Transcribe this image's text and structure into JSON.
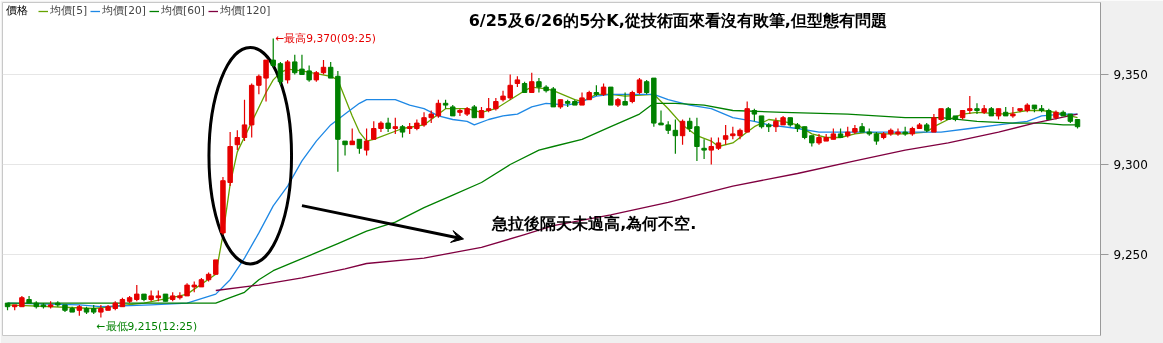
{
  "chart_data": {
    "type": "candlestick",
    "title": "6/25及6/26的5分K,從技術面來看沒有敗筆,但型態有問題",
    "legend_title": "價格",
    "legend": "top left",
    "grid": "y",
    "tick_labels": "y",
    "ylim": [
      9205,
      9390
    ],
    "yticks": [
      {
        "value": 9250,
        "label": "9,250"
      },
      {
        "value": 9300,
        "label": "9,300"
      },
      {
        "value": 9350,
        "label": "9,350"
      }
    ],
    "annotations": [
      "←最高9,370(09:25)",
      "←最低9,215(12:25)",
      "急拉後隔天未過高,為何不空."
    ],
    "categories": [
      null,
      null,
      null,
      null,
      null,
      null,
      null,
      null,
      null,
      null,
      null,
      null,
      null,
      null,
      null,
      null,
      null,
      null,
      null,
      null,
      null,
      null,
      null,
      null,
      null,
      null,
      null,
      null,
      null,
      null,
      null,
      null,
      null,
      null,
      null,
      null,
      null,
      null,
      null,
      null,
      null,
      null,
      null,
      null,
      null,
      null,
      null,
      null,
      null,
      null,
      null,
      null,
      null,
      null,
      null,
      null,
      null,
      null,
      null,
      null,
      null,
      null,
      null,
      null,
      null,
      null,
      null,
      null,
      null,
      null,
      null,
      null,
      null,
      null,
      null,
      null,
      null,
      null,
      null,
      null,
      null,
      null,
      null,
      null,
      null,
      null,
      null,
      null,
      null,
      null,
      null,
      null,
      null,
      null,
      null,
      null,
      null,
      null,
      null,
      null,
      null,
      null,
      null,
      null,
      null,
      null,
      null,
      null,
      null,
      null,
      null,
      null,
      null,
      null,
      null,
      null,
      null,
      null,
      null,
      null,
      null,
      null,
      null,
      null,
      null,
      null,
      null,
      null,
      null,
      null,
      null,
      null,
      null,
      null,
      null,
      null,
      null,
      null,
      null,
      null,
      null,
      null,
      null,
      null,
      null,
      null,
      null,
      null,
      null,
      null
    ],
    "ohlc": [
      [
        9223,
        9223,
        9219,
        9221
      ],
      [
        9221,
        9222,
        9219,
        9222
      ],
      [
        9221,
        9227,
        9221,
        9226
      ],
      [
        9225,
        9227,
        9223,
        9223
      ],
      [
        9223,
        9224,
        9220,
        9221
      ],
      [
        9222,
        9223,
        9220,
        9221
      ],
      [
        9221,
        9224,
        9220,
        9222
      ],
      [
        9223,
        9224,
        9221,
        9222
      ],
      [
        9222,
        9222,
        9218,
        9219
      ],
      [
        9220,
        9221,
        9218,
        9218
      ],
      [
        9219,
        9222,
        9216,
        9221
      ],
      [
        9220,
        9221,
        9217,
        9218
      ],
      [
        9220,
        9222,
        9217,
        9218
      ],
      [
        9218,
        9222,
        9215,
        9220
      ],
      [
        9219,
        9222,
        9219,
        9221
      ],
      [
        9220,
        9224,
        9219,
        9223
      ],
      [
        9221,
        9226,
        9221,
        9225
      ],
      [
        9224,
        9227,
        9223,
        9226
      ],
      [
        9225,
        9233,
        9224,
        9228
      ],
      [
        9228,
        9228,
        9224,
        9225
      ],
      [
        9225,
        9230,
        9224,
        9227
      ],
      [
        9226,
        9230,
        9224,
        9227
      ],
      [
        9228,
        9228,
        9224,
        9224
      ],
      [
        9225,
        9229,
        9224,
        9227
      ],
      [
        9226,
        9229,
        9225,
        9227
      ],
      [
        9227,
        9234,
        9227,
        9233
      ],
      [
        9232,
        9235,
        9229,
        9233
      ],
      [
        9232,
        9237,
        9232,
        9236
      ],
      [
        9236,
        9240,
        9235,
        9239
      ],
      [
        9239,
        9247,
        9239,
        9247
      ],
      [
        9262,
        9293,
        9261,
        9291
      ],
      [
        9290,
        9318,
        9288,
        9310
      ],
      [
        9311,
        9319,
        9308,
        9315
      ],
      [
        9315,
        9336,
        9313,
        9322
      ],
      [
        9322,
        9345,
        9315,
        9344
      ],
      [
        9344,
        9350,
        9339,
        9349
      ],
      [
        9348,
        9358,
        9335,
        9358
      ],
      [
        9358,
        9370,
        9354,
        9355
      ],
      [
        9356,
        9357,
        9344,
        9346
      ],
      [
        9347,
        9358,
        9345,
        9357
      ],
      [
        9357,
        9361,
        9350,
        9351
      ],
      [
        9353,
        9361,
        9350,
        9350
      ],
      [
        9352,
        9355,
        9346,
        9347
      ],
      [
        9347,
        9352,
        9346,
        9351
      ],
      [
        9351,
        9358,
        9350,
        9354
      ],
      [
        9354,
        9357,
        9348,
        9348
      ],
      [
        9349,
        9352,
        9296,
        9314
      ],
      [
        9313,
        9313,
        9305,
        9311
      ],
      [
        9311,
        9320,
        9311,
        9313
      ],
      [
        9314,
        9314,
        9306,
        9309
      ],
      [
        9308,
        9320,
        9305,
        9313
      ],
      [
        9314,
        9324,
        9314,
        9320
      ],
      [
        9320,
        9324,
        9318,
        9323
      ],
      [
        9323,
        9326,
        9318,
        9320
      ],
      [
        9320,
        9326,
        9317,
        9321
      ],
      [
        9321,
        9322,
        9315,
        9318
      ],
      [
        9320,
        9323,
        9317,
        9321
      ],
      [
        9320,
        9325,
        9319,
        9323
      ],
      [
        9322,
        9329,
        9321,
        9326
      ],
      [
        9326,
        9330,
        9323,
        9328
      ],
      [
        9327,
        9336,
        9326,
        9334
      ],
      [
        9334,
        9336,
        9331,
        9333
      ],
      [
        9332,
        9333,
        9327,
        9327
      ],
      [
        9329,
        9331,
        9327,
        9330
      ],
      [
        9328,
        9332,
        9327,
        9331
      ],
      [
        9332,
        9333,
        9326,
        9326
      ],
      [
        9326,
        9332,
        9326,
        9330
      ],
      [
        9330,
        9337,
        9329,
        9331
      ],
      [
        9331,
        9337,
        9330,
        9335
      ],
      [
        9336,
        9341,
        9335,
        9338
      ],
      [
        9337,
        9350,
        9336,
        9344
      ],
      [
        9345,
        9349,
        9343,
        9347
      ],
      [
        9345,
        9346,
        9340,
        9340
      ],
      [
        9340,
        9351,
        9340,
        9346
      ],
      [
        9346,
        9348,
        9340,
        9343
      ],
      [
        9343,
        9344,
        9340,
        9341
      ],
      [
        9342,
        9343,
        9332,
        9332
      ],
      [
        9332,
        9336,
        9331,
        9336
      ],
      [
        9335,
        9336,
        9332,
        9334
      ],
      [
        9335,
        9336,
        9333,
        9333
      ],
      [
        9333,
        9340,
        9333,
        9337
      ],
      [
        9336,
        9341,
        9336,
        9340
      ],
      [
        9340,
        9344,
        9338,
        9339
      ],
      [
        9339,
        9345,
        9338,
        9343
      ],
      [
        9343,
        9343,
        9333,
        9333
      ],
      [
        9333,
        9337,
        9332,
        9336
      ],
      [
        9335,
        9340,
        9333,
        9333
      ],
      [
        9335,
        9341,
        9334,
        9340
      ],
      [
        9340,
        9348,
        9339,
        9347
      ],
      [
        9346,
        9347,
        9339,
        9340
      ],
      [
        9348,
        9348,
        9321,
        9323
      ],
      [
        9323,
        9330,
        9322,
        9322
      ],
      [
        9322,
        9324,
        9317,
        9319
      ],
      [
        9319,
        9325,
        9306,
        9316
      ],
      [
        9316,
        9325,
        9311,
        9324
      ],
      [
        9324,
        9326,
        9318,
        9320
      ],
      [
        9321,
        9326,
        9302,
        9310
      ],
      [
        9309,
        9314,
        9303,
        9308
      ],
      [
        9308,
        9315,
        9300,
        9310
      ],
      [
        9309,
        9315,
        9308,
        9312
      ],
      [
        9314,
        9322,
        9311,
        9316
      ],
      [
        9316,
        9321,
        9314,
        9317
      ],
      [
        9316,
        9320,
        9314,
        9319
      ],
      [
        9318,
        9335,
        9318,
        9331
      ],
      [
        9330,
        9331,
        9324,
        9328
      ],
      [
        9327,
        9327,
        9320,
        9321
      ],
      [
        9322,
        9323,
        9318,
        9321
      ],
      [
        9321,
        9326,
        9318,
        9324
      ],
      [
        9322,
        9327,
        9322,
        9326
      ],
      [
        9326,
        9326,
        9321,
        9322
      ],
      [
        9322,
        9323,
        9318,
        9320
      ],
      [
        9321,
        9321,
        9314,
        9315
      ],
      [
        9316,
        9316,
        9310,
        9312
      ],
      [
        9312,
        9317,
        9311,
        9315
      ],
      [
        9313,
        9317,
        9313,
        9315
      ],
      [
        9314,
        9320,
        9314,
        9317
      ],
      [
        9317,
        9320,
        9315,
        9315
      ],
      [
        9316,
        9321,
        9315,
        9318
      ],
      [
        9318,
        9322,
        9317,
        9320
      ],
      [
        9321,
        9323,
        9318,
        9318
      ],
      [
        9318,
        9320,
        9316,
        9317
      ],
      [
        9317,
        9318,
        9311,
        9313
      ],
      [
        9315,
        9318,
        9314,
        9317
      ],
      [
        9317,
        9320,
        9316,
        9319
      ],
      [
        9317,
        9320,
        9316,
        9318
      ],
      [
        9318,
        9321,
        9316,
        9317
      ],
      [
        9317,
        9321,
        9316,
        9320
      ],
      [
        9320,
        9323,
        9320,
        9322
      ],
      [
        9322,
        9323,
        9318,
        9319
      ],
      [
        9318,
        9328,
        9318,
        9326
      ],
      [
        9325,
        9331,
        9324,
        9331
      ],
      [
        9331,
        9332,
        9325,
        9325
      ],
      [
        9327,
        9327,
        9324,
        9325
      ],
      [
        9326,
        9330,
        9325,
        9330
      ],
      [
        9330,
        9338,
        9328,
        9331
      ],
      [
        9331,
        9334,
        9328,
        9330
      ],
      [
        9329,
        9333,
        9328,
        9331
      ],
      [
        9331,
        9332,
        9327,
        9327
      ],
      [
        9327,
        9331,
        9325,
        9331
      ],
      [
        9329,
        9332,
        9327,
        9327
      ],
      [
        9327,
        9332,
        9326,
        9328
      ],
      [
        9330,
        9331,
        9329,
        9331
      ],
      [
        9330,
        9334,
        9329,
        9333
      ],
      [
        9333,
        9333,
        9329,
        9331
      ],
      [
        9331,
        9333,
        9329,
        9330
      ],
      [
        9330,
        9331,
        9325,
        9325
      ],
      [
        9326,
        9330,
        9325,
        9329
      ],
      [
        9329,
        9330,
        9327,
        9327
      ],
      [
        9328,
        9328,
        9323,
        9324
      ],
      [
        9325,
        9325,
        9320,
        9321
      ]
    ],
    "colors": [
      "#008000",
      "#e60000",
      "#e60000",
      "#008000",
      "#008000",
      "#008000",
      "#e60000",
      "#008000",
      "#008000",
      "#008000",
      "#e60000",
      "#008000",
      "#008000",
      "#e60000",
      "#e60000",
      "#e60000",
      "#e60000",
      "#e60000",
      "#e60000",
      "#008000",
      "#e60000",
      "#e60000",
      "#008000",
      "#e60000",
      "#e60000",
      "#e60000",
      "#e60000",
      "#e60000",
      "#e60000",
      "#e60000",
      "#e60000",
      "#e60000",
      "#e60000",
      "#e60000",
      "#e60000",
      "#e60000",
      "#e60000",
      "#008000",
      "#008000",
      "#e60000",
      "#008000",
      "#008000",
      "#008000",
      "#e60000",
      "#e60000",
      "#008000",
      "#008000",
      "#008000",
      "#e60000",
      "#008000",
      "#e60000",
      "#e60000",
      "#e60000",
      "#008000",
      "#e60000",
      "#008000",
      "#e60000",
      "#e60000",
      "#e60000",
      "#e60000",
      "#e60000",
      "#008000",
      "#008000",
      "#e60000",
      "#e60000",
      "#008000",
      "#e60000",
      "#e60000",
      "#e60000",
      "#e60000",
      "#e60000",
      "#e60000",
      "#008000",
      "#e60000",
      "#008000",
      "#008000",
      "#008000",
      "#e60000",
      "#008000",
      "#008000",
      "#e60000",
      "#e60000",
      "#008000",
      "#e60000",
      "#008000",
      "#e60000",
      "#008000",
      "#e60000",
      "#e60000",
      "#008000",
      "#008000",
      "#008000",
      "#008000",
      "#008000",
      "#e60000",
      "#008000",
      "#008000",
      "#008000",
      "#e60000",
      "#e60000",
      "#e60000",
      "#e60000",
      "#e60000",
      "#e60000",
      "#008000",
      "#008000",
      "#008000",
      "#e60000",
      "#e60000",
      "#008000",
      "#008000",
      "#008000",
      "#008000",
      "#e60000",
      "#e60000",
      "#e60000",
      "#008000",
      "#e60000",
      "#e60000",
      "#008000",
      "#008000",
      "#008000",
      "#e60000",
      "#e60000",
      "#e60000",
      "#008000",
      "#e60000",
      "#e60000",
      "#008000",
      "#e60000",
      "#e60000",
      "#008000",
      "#008000",
      "#e60000",
      "#e60000",
      "#008000",
      "#e60000",
      "#008000",
      "#e60000",
      "#008000",
      "#e60000",
      "#e60000",
      "#e60000",
      "#008000",
      "#008000",
      "#008000",
      "#e60000",
      "#008000",
      "#008000",
      "#008000"
    ],
    "series": [
      {
        "type": "line",
        "name": "均價[5]",
        "color": "#66a300",
        "values": [
          9222,
          null,
          null,
          null,
          null,
          null,
          null,
          null,
          null,
          null,
          null,
          null,
          9220,
          null,
          null,
          null,
          null,
          null,
          null,
          9223,
          null,
          null,
          null,
          null,
          9227,
          9228,
          null,
          null,
          null,
          9239,
          9261,
          9289,
          9307,
          null,
          null,
          null,
          9340,
          9347,
          9351,
          9353,
          null,
          9352,
          null,
          null,
          null,
          9349,
          9347,
          null,
          9327,
          9318,
          9313,
          9314,
          null,
          null,
          null,
          9320,
          null,
          null,
          9322,
          9325,
          null,
          9331,
          null,
          null,
          9331,
          null,
          9329,
          null,
          9331,
          null,
          9336,
          null,
          9341,
          9343,
          null,
          9342,
          9341,
          null,
          null,
          9336,
          9335,
          null,
          9339,
          null,
          9339,
          null,
          9338,
          null,
          null,
          null,
          9339,
          null,
          9331,
          null,
          9322,
          null,
          9316,
          null,
          9313,
          9310,
          null,
          9312,
          null,
          9318,
          9321,
          null,
          9325,
          null,
          9324,
          null,
          9322,
          null,
          9317,
          null,
          9315,
          null,
          9315,
          null,
          9317,
          null,
          9318,
          null,
          9317,
          null,
          9317,
          9317,
          null,
          null,
          9318,
          9321,
          null,
          9325,
          null,
          9328,
          null,
          9329,
          null,
          null,
          null,
          9328,
          null,
          null,
          9330,
          null,
          9330,
          null,
          9329,
          null,
          9327,
          9326
        ]
      },
      {
        "type": "line",
        "name": "均價[20]",
        "color": "#1e88e5",
        "values": [
          9223,
          null,
          null,
          null,
          null,
          null,
          null,
          null,
          null,
          null,
          9222,
          null,
          null,
          9221,
          null,
          null,
          null,
          null,
          null,
          null,
          9222,
          null,
          null,
          null,
          null,
          9223,
          null,
          null,
          null,
          9228,
          null,
          9236,
          null,
          9248,
          null,
          9262,
          null,
          9277,
          null,
          9288,
          null,
          9302,
          null,
          9313,
          null,
          9322,
          null,
          9328,
          null,
          9334,
          9336,
          null,
          9336,
          null,
          9336,
          null,
          9333,
          null,
          9331,
          null,
          9327,
          null,
          9325,
          null,
          9324,
          9322,
          null,
          9325,
          null,
          9327,
          null,
          9328,
          null,
          9332,
          null,
          9334,
          null,
          null,
          9333,
          null,
          9335,
          null,
          9338,
          null,
          9339,
          null,
          null,
          9339,
          null,
          null,
          9339,
          null,
          9336,
          null,
          null,
          9333,
          null,
          null,
          9331,
          null,
          null,
          9326,
          null,
          null,
          9324,
          null,
          9322,
          null,
          null,
          null,
          9320,
          null,
          null,
          9318,
          null,
          null,
          null,
          9318,
          null,
          null,
          null,
          9318,
          null,
          null,
          null,
          9318,
          null,
          null,
          null,
          null,
          9318,
          null,
          null,
          null,
          9320,
          null,
          null,
          null,
          9322,
          null,
          null,
          null,
          9324,
          null,
          9327,
          null,
          null,
          9328,
          null,
          9328
        ]
      },
      {
        "type": "line",
        "name": "均價[60]",
        "color": "#008000",
        "values": [
          9223,
          null,
          null,
          null,
          null,
          null,
          null,
          9223,
          null,
          null,
          null,
          null,
          null,
          9223,
          null,
          null,
          null,
          null,
          null,
          null,
          null,
          null,
          null,
          null,
          null,
          9223,
          null,
          null,
          null,
          9223,
          null,
          9226,
          null,
          9229,
          null,
          9236,
          null,
          9241,
          null,
          null,
          9246,
          null,
          null,
          9251,
          null,
          null,
          9256,
          null,
          null,
          null,
          9263,
          null,
          null,
          null,
          9268,
          null,
          null,
          null,
          9276,
          null,
          null,
          null,
          9283,
          null,
          null,
          null,
          9290,
          null,
          null,
          null,
          9300,
          null,
          null,
          null,
          9308,
          null,
          9310,
          null,
          null,
          null,
          9314,
          null,
          null,
          null,
          9321,
          null,
          null,
          null,
          9328,
          null,
          9334,
          null,
          null,
          9334,
          null,
          null,
          null,
          9333,
          null,
          null,
          null,
          9330,
          null,
          null,
          null,
          null,
          null,
          null,
          9329,
          null,
          null,
          null,
          null,
          null,
          null,
          null,
          null,
          9328,
          null,
          null,
          null,
          9327,
          null,
          null,
          null,
          9326,
          null,
          null,
          null,
          null,
          9326,
          null,
          null,
          null,
          null,
          9324,
          null,
          null,
          null,
          null,
          9323,
          null,
          null,
          null,
          9323,
          null,
          null,
          9322,
          null,
          9322
        ]
      },
      {
        "type": "line",
        "name": "均價[120]",
        "color": "#800040",
        "values": [
          null,
          null,
          null,
          null,
          null,
          null,
          null,
          null,
          null,
          null,
          null,
          null,
          null,
          null,
          null,
          null,
          null,
          null,
          null,
          null,
          null,
          null,
          null,
          null,
          null,
          null,
          null,
          null,
          null,
          9230,
          null,
          null,
          null,
          null,
          null,
          9233,
          null,
          null,
          null,
          null,
          null,
          9237,
          null,
          null,
          null,
          null,
          null,
          9242,
          null,
          null,
          9245,
          null,
          null,
          null,
          null,
          null,
          null,
          null,
          9248,
          null,
          null,
          null,
          null,
          null,
          null,
          null,
          9254,
          null,
          null,
          null,
          null,
          null,
          9261,
          null,
          null,
          null,
          9266,
          null,
          null,
          null,
          null,
          null,
          null,
          null,
          9272,
          null,
          null,
          null,
          null,
          null,
          null,
          null,
          9279,
          null,
          null,
          null,
          null,
          null,
          null,
          null,
          null,
          9288,
          null,
          null,
          null,
          null,
          null,
          null,
          null,
          null,
          9295,
          null,
          null,
          null,
          null,
          null,
          null,
          null,
          9302,
          null,
          null,
          null,
          null,
          null,
          null,
          9308,
          null,
          null,
          null,
          null,
          null,
          9312,
          null,
          null,
          null,
          null,
          null,
          null,
          9318,
          null,
          null,
          null,
          null,
          9323,
          null,
          null,
          null,
          null,
          null,
          9328
        ]
      }
    ]
  }
}
